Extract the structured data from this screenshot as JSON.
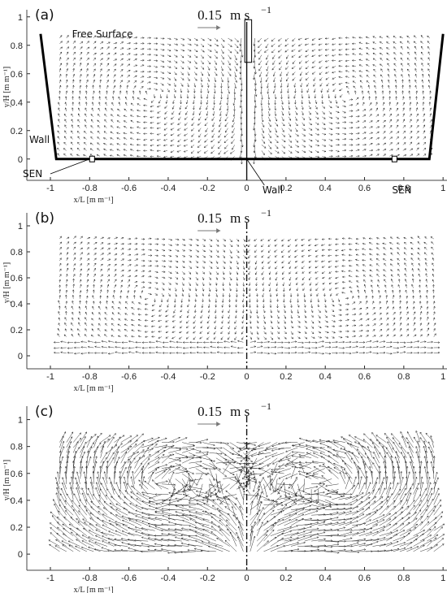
{
  "chart_data": [
    {
      "type": "quiver",
      "panel_label": "(a)",
      "xlabel": "x/L [m m⁻¹]",
      "ylabel": "y/H [m m⁻¹]",
      "xlim": [
        -1.12,
        1.02
      ],
      "ylim": [
        -0.15,
        1.05
      ],
      "xticks": [
        -1,
        -0.8,
        -0.6,
        -0.4,
        -0.2,
        0,
        0.2,
        0.4,
        0.6,
        0.8,
        1
      ],
      "xtick_labels": [
        "-1",
        "-0.8",
        "-0.6",
        "-0.4",
        "-0.2",
        "0",
        "0.2",
        "0.4",
        "0.6",
        "0.8",
        "1"
      ],
      "yticks": [
        0,
        0.2,
        0.4,
        0.6,
        0.8,
        1
      ],
      "ytick_labels": [
        "0",
        "0.2",
        "0.4",
        "0.6",
        "0.8",
        "1"
      ],
      "scale_value": "0.15",
      "scale_unit": "m s",
      "scale_exp": "−1",
      "annotations": [
        "Free Surface",
        "Wall",
        "SEN",
        "Wall",
        "SEN"
      ],
      "field": {
        "x_range": [
          -0.97,
          0.95
        ],
        "y_range": [
          0.0,
          0.87
        ],
        "pattern": "counter-rotating recirculation cells either side of a central downward jet"
      }
    },
    {
      "type": "quiver",
      "panel_label": "(b)",
      "xlabel": "x/L [m m⁻¹]",
      "ylabel": "y/H [m m⁻¹]",
      "xlim": [
        -1.12,
        1.02
      ],
      "ylim": [
        -0.1,
        1.1
      ],
      "xticks": [
        -1,
        -0.8,
        -0.6,
        -0.4,
        -0.2,
        0,
        0.2,
        0.4,
        0.6,
        0.8,
        1
      ],
      "xtick_labels": [
        "-1",
        "-0.8",
        "-0.6",
        "-0.4",
        "-0.2",
        "0",
        "0.2",
        "0.4",
        "0.6",
        "0.8",
        "1"
      ],
      "yticks": [
        0,
        0.2,
        0.4,
        0.6,
        0.8,
        1
      ],
      "ytick_labels": [
        "0",
        "0.2",
        "0.4",
        "0.6",
        "0.8",
        "1"
      ],
      "scale_value": "0.15",
      "scale_unit": "m s",
      "scale_exp": "−1",
      "field": {
        "x_range": [
          -0.97,
          0.97
        ],
        "y_range": [
          0.0,
          0.92
        ],
        "pattern": "weak recirculation cells, strong near-wall flow along bottom"
      }
    },
    {
      "type": "quiver",
      "panel_label": "(c)",
      "xlabel": "x/L [m m⁻¹]",
      "ylabel": "y/H [m m⁻¹]",
      "xlim": [
        -1.12,
        1.02
      ],
      "ylim": [
        -0.12,
        1.1
      ],
      "xticks": [
        -1,
        -0.8,
        -0.6,
        -0.4,
        -0.2,
        0,
        0.2,
        0.4,
        0.6,
        0.8,
        1
      ],
      "xtick_labels": [
        "-1",
        "-0.8",
        "-0.6",
        "-0.4",
        "-0.2",
        "0",
        "0.2",
        "0.4",
        "0.6",
        "0.8",
        "1"
      ],
      "yticks": [
        0,
        0.2,
        0.4,
        0.6,
        0.8,
        1
      ],
      "ytick_labels": [
        "0",
        "0.2",
        "0.4",
        "0.6",
        "0.8",
        "1"
      ],
      "scale_value": "0.15",
      "scale_unit": "m s",
      "scale_exp": "−1",
      "field": {
        "x_range": [
          -0.97,
          0.97
        ],
        "y_range": [
          0.0,
          0.85
        ],
        "pattern": "strong flow radiating from bottom centre, large vortical cells"
      }
    }
  ]
}
